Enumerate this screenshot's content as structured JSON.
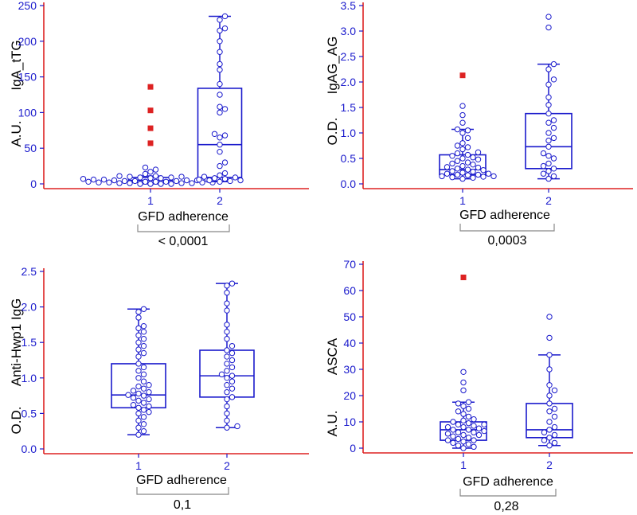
{
  "chart_data": [
    {
      "type": "box",
      "ylabel_unit": "A.U.",
      "ylabel": "IgA_tTG",
      "xlabel": "GFD adherence",
      "categories": [
        "1",
        "2"
      ],
      "ylim": [
        0,
        250
      ],
      "yticks": [
        0,
        50,
        100,
        150,
        200,
        250
      ],
      "ytick_labels": [
        "0",
        "50",
        "100",
        "150",
        "200",
        "250"
      ],
      "pvalue": "< 0,0001",
      "boxes": [
        {
          "min": 0,
          "q1": 2,
          "median": 5,
          "q3": 9,
          "max": 11,
          "points": [
            0,
            0,
            0,
            0,
            1,
            1,
            1,
            1,
            2,
            2,
            2,
            2,
            3,
            3,
            3,
            3,
            4,
            4,
            4,
            5,
            5,
            5,
            6,
            6,
            6,
            7,
            7,
            8,
            8,
            9,
            9,
            10,
            10,
            11,
            11,
            14,
            17,
            20,
            23
          ],
          "outliers": [
            57,
            78,
            103,
            136
          ]
        },
        {
          "min": 3,
          "q1": 9,
          "median": 55,
          "q3": 134,
          "max": 235,
          "points": [
            3,
            4,
            5,
            5,
            6,
            7,
            8,
            9,
            10,
            12,
            15,
            25,
            30,
            45,
            55,
            65,
            68,
            70,
            100,
            105,
            108,
            125,
            140,
            160,
            168,
            185,
            200,
            215,
            218,
            230,
            235
          ],
          "outliers": []
        }
      ]
    },
    {
      "type": "box",
      "ylabel_unit": "O.D.",
      "ylabel": "IgAG_AG",
      "xlabel": "GFD adherence",
      "categories": [
        "1",
        "2"
      ],
      "ylim": [
        0,
        3.5
      ],
      "yticks": [
        0,
        0.5,
        1.0,
        1.5,
        2.0,
        2.5,
        3.0,
        3.5
      ],
      "ytick_labels": [
        "0.0",
        "0.5",
        "1.0",
        "1.5",
        "2.0",
        "2.5",
        "3.0",
        "3.5"
      ],
      "pvalue": "0,0003",
      "boxes": [
        {
          "min": 0.1,
          "q1": 0.18,
          "median": 0.28,
          "q3": 0.57,
          "max": 1.07,
          "points": [
            0.1,
            0.12,
            0.13,
            0.14,
            0.15,
            0.15,
            0.17,
            0.18,
            0.18,
            0.2,
            0.2,
            0.22,
            0.24,
            0.25,
            0.27,
            0.28,
            0.3,
            0.32,
            0.33,
            0.35,
            0.38,
            0.4,
            0.42,
            0.45,
            0.48,
            0.5,
            0.52,
            0.55,
            0.57,
            0.6,
            0.62,
            0.68,
            0.72,
            0.75,
            0.8,
            0.9,
            1.0,
            1.05,
            1.07,
            1.2,
            1.35,
            1.53
          ],
          "outliers": [
            2.13
          ]
        },
        {
          "min": 0.1,
          "q1": 0.3,
          "median": 0.73,
          "q3": 1.38,
          "max": 2.35,
          "points": [
            0.1,
            0.15,
            0.2,
            0.25,
            0.3,
            0.35,
            0.4,
            0.5,
            0.55,
            0.6,
            0.73,
            0.85,
            0.9,
            1.0,
            1.1,
            1.2,
            1.25,
            1.38,
            1.55,
            1.7,
            1.95,
            2.05,
            2.25,
            2.35,
            3.07,
            3.28
          ],
          "outliers": []
        }
      ]
    },
    {
      "type": "box",
      "ylabel_unit": "O.D.",
      "ylabel": "Anti-Hwp1 IgG",
      "xlabel": "GFD adherence",
      "categories": [
        "1",
        "2"
      ],
      "ylim": [
        0,
        2.5
      ],
      "yticks": [
        0,
        0.5,
        1.0,
        1.5,
        2.0,
        2.5
      ],
      "ytick_labels": [
        "0.0",
        "0.5",
        "1.0",
        "1.5",
        "2.0",
        "2.5"
      ],
      "pvalue": "0,1",
      "boxes": [
        {
          "min": 0.2,
          "q1": 0.58,
          "median": 0.76,
          "q3": 1.2,
          "max": 1.97,
          "points": [
            0.2,
            0.25,
            0.3,
            0.35,
            0.4,
            0.45,
            0.5,
            0.52,
            0.55,
            0.58,
            0.6,
            0.62,
            0.65,
            0.68,
            0.7,
            0.72,
            0.75,
            0.76,
            0.78,
            0.8,
            0.82,
            0.85,
            0.88,
            0.9,
            0.95,
            1.0,
            1.05,
            1.1,
            1.15,
            1.2,
            1.3,
            1.35,
            1.4,
            1.45,
            1.5,
            1.55,
            1.6,
            1.65,
            1.7,
            1.73,
            1.85,
            1.93,
            1.97
          ],
          "outliers": []
        },
        {
          "min": 0.3,
          "q1": 0.73,
          "median": 1.03,
          "q3": 1.39,
          "max": 2.33,
          "points": [
            0.3,
            0.32,
            0.4,
            0.5,
            0.6,
            0.7,
            0.73,
            0.8,
            0.85,
            0.9,
            0.95,
            1.0,
            1.03,
            1.05,
            1.1,
            1.15,
            1.2,
            1.25,
            1.3,
            1.35,
            1.39,
            1.45,
            1.55,
            1.65,
            1.75,
            1.95,
            2.05,
            2.2,
            2.3,
            2.33
          ],
          "outliers": []
        }
      ]
    },
    {
      "type": "box",
      "ylabel_unit": "A.U.",
      "ylabel": "ASCA",
      "xlabel": "GFD adherence",
      "categories": [
        "1",
        "2"
      ],
      "ylim": [
        0,
        70
      ],
      "yticks": [
        0,
        10,
        20,
        30,
        40,
        50,
        60,
        70
      ],
      "ytick_labels": [
        "0",
        "10",
        "20",
        "30",
        "40",
        "50",
        "60",
        "70"
      ],
      "pvalue": "0,28",
      "boxes": [
        {
          "min": 0,
          "q1": 3,
          "median": 7,
          "q3": 10,
          "max": 17.5,
          "points": [
            0,
            0.5,
            1,
            1.5,
            2,
            2.5,
            3,
            3,
            3.5,
            4,
            4.5,
            5,
            5,
            5.5,
            6,
            6,
            6.5,
            7,
            7,
            7.5,
            8,
            8,
            8.5,
            9,
            9,
            9.5,
            10,
            10.5,
            11,
            12,
            13,
            14,
            15,
            16,
            17,
            17.5,
            22,
            25,
            29
          ],
          "outliers": [
            65
          ]
        },
        {
          "min": 1,
          "q1": 4,
          "median": 7,
          "q3": 17,
          "max": 35.5,
          "points": [
            1,
            2,
            3,
            4,
            5,
            6,
            7,
            8,
            10,
            12,
            14,
            15,
            17,
            20,
            22,
            24,
            30,
            35.5,
            42,
            50
          ],
          "outliers": []
        }
      ]
    }
  ]
}
